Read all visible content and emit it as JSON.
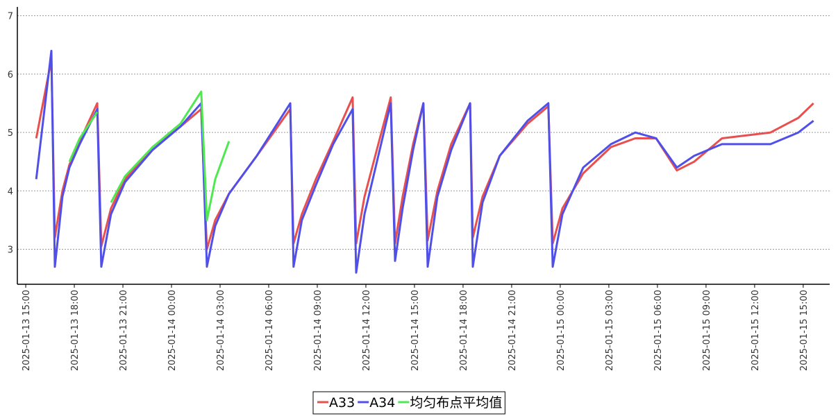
{
  "chart_data": {
    "type": "line",
    "x": [
      "2025-01-13 15:39",
      "2025-01-13 16:35",
      "2025-01-13 16:48",
      "2025-01-13 17:16",
      "2025-01-13 17:42",
      "2025-01-13 18:20",
      "2025-01-13 19:25",
      "2025-01-13 19:40",
      "2025-01-13 20:16",
      "2025-01-13 21:08",
      "2025-01-13 22:50",
      "2025-01-14 00:33",
      "2025-01-14 01:50",
      "2025-01-14 02:11",
      "2025-01-14 02:42",
      "2025-01-14 03:33",
      "2025-01-14 05:16",
      "2025-01-14 07:20",
      "2025-01-14 07:32",
      "2025-01-14 08:03",
      "2025-01-14 08:55",
      "2025-01-14 09:59",
      "2025-01-14 11:11",
      "2025-01-14 11:24",
      "2025-01-14 11:55",
      "2025-01-14 12:46",
      "2025-01-14 13:32",
      "2025-01-14 13:48",
      "2025-01-14 14:16",
      "2025-01-14 14:55",
      "2025-01-14 15:33",
      "2025-01-14 15:49",
      "2025-01-14 16:25",
      "2025-01-14 17:16",
      "2025-01-14 18:26",
      "2025-01-14 18:36",
      "2025-01-14 19:12",
      "2025-01-14 20:16",
      "2025-01-14 21:59",
      "2025-01-14 23:16",
      "2025-01-14 23:32",
      "2025-01-15 00:08",
      "2025-01-15 01:25",
      "2025-01-15 03:08",
      "2025-01-15 04:38",
      "2025-01-15 05:55",
      "2025-01-15 07:12",
      "2025-01-15 08:16",
      "2025-01-15 09:59",
      "2025-01-15 12:59",
      "2025-01-15 14:42",
      "2025-01-15 15:38"
    ],
    "series": [
      {
        "name": "A33",
        "color": "#e85050",
        "values": [
          4.9,
          6.25,
          3.2,
          4.0,
          4.45,
          4.85,
          5.5,
          3.05,
          3.7,
          4.2,
          4.75,
          5.1,
          5.4,
          3.0,
          3.5,
          3.95,
          4.6,
          5.4,
          3.1,
          3.6,
          4.2,
          4.85,
          5.6,
          3.1,
          3.9,
          4.8,
          5.6,
          3.1,
          3.9,
          4.8,
          5.5,
          3.15,
          4.0,
          4.8,
          5.5,
          3.2,
          3.9,
          4.6,
          5.15,
          5.45,
          3.1,
          3.7,
          4.3,
          4.75,
          4.9,
          4.9,
          4.35,
          4.5,
          4.9,
          5.0,
          5.25,
          5.5
        ]
      },
      {
        "name": "A34",
        "color": "#5050e8",
        "values": [
          4.2,
          6.4,
          2.7,
          3.9,
          4.4,
          4.8,
          5.4,
          2.7,
          3.6,
          4.15,
          4.7,
          5.1,
          5.5,
          2.7,
          3.4,
          3.95,
          4.6,
          5.5,
          2.7,
          3.5,
          4.1,
          4.8,
          5.4,
          2.6,
          3.6,
          4.6,
          5.5,
          2.8,
          3.7,
          4.7,
          5.5,
          2.7,
          3.9,
          4.7,
          5.5,
          2.7,
          3.8,
          4.6,
          5.2,
          5.5,
          2.7,
          3.6,
          4.4,
          4.8,
          5.0,
          4.9,
          4.4,
          4.6,
          4.8,
          4.8,
          5.0,
          5.2
        ]
      },
      {
        "name": "均匀布点平均值",
        "color": "#50e850",
        "values": [
          null,
          null,
          null,
          null,
          4.5,
          4.9,
          5.35,
          null,
          3.8,
          4.25,
          4.75,
          5.15,
          5.7,
          3.5,
          4.2,
          4.85,
          null,
          null,
          null,
          null,
          null,
          null,
          null,
          null,
          null,
          null,
          null,
          null,
          null,
          null,
          null,
          null,
          null,
          null,
          null,
          null,
          null,
          null,
          null,
          null,
          null,
          null,
          null,
          null,
          null,
          null,
          null,
          null,
          null,
          null,
          null,
          null
        ]
      }
    ],
    "xlim": [
      "2025-01-13 14:29",
      "2025-01-15 16:38"
    ],
    "xticks": [
      "2025-01-13 15:00",
      "2025-01-13 18:00",
      "2025-01-13 21:00",
      "2025-01-14 00:00",
      "2025-01-14 03:00",
      "2025-01-14 06:00",
      "2025-01-14 09:00",
      "2025-01-14 12:00",
      "2025-01-14 15:00",
      "2025-01-14 18:00",
      "2025-01-14 21:00",
      "2025-01-15 00:00",
      "2025-01-15 03:00",
      "2025-01-15 06:00",
      "2025-01-15 09:00",
      "2025-01-15 12:00",
      "2025-01-15 15:00"
    ],
    "ylim": [
      2.4,
      7.15
    ],
    "yticks": [
      3,
      4,
      5,
      6,
      7
    ],
    "grid": true
  }
}
